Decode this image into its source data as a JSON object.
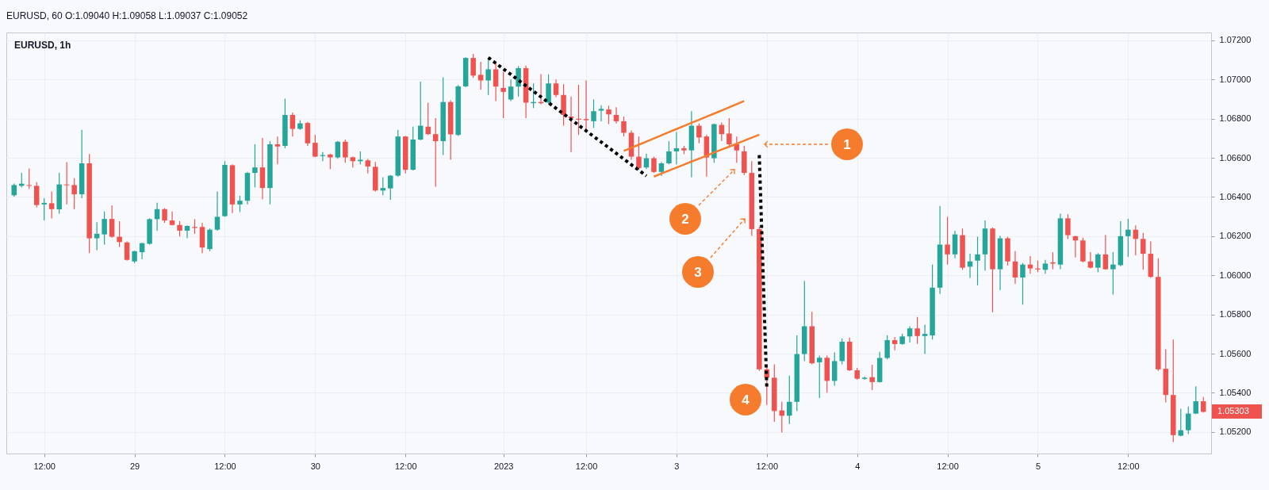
{
  "chart_data": {
    "type": "candlestick",
    "title": "EURUSD, 60 O:1.09040 H:1.09058 L:1.09037 C:1.09052",
    "subtitle": "EURUSD, 1h",
    "categories": [
      null,
      null,
      null,
      null,
      "12:00",
      null,
      null,
      null,
      null,
      null,
      null,
      null,
      null,
      null,
      null,
      null,
      "29",
      null,
      null,
      null,
      null,
      null,
      null,
      null,
      null,
      null,
      null,
      null,
      "12:00",
      null,
      null,
      null,
      null,
      null,
      null,
      null,
      null,
      null,
      null,
      null,
      "30",
      null,
      null,
      null,
      null,
      null,
      null,
      null,
      null,
      null,
      null,
      null,
      "12:00",
      null,
      null,
      null,
      null,
      null,
      null,
      null,
      null,
      null,
      null,
      null,
      null,
      "2023",
      null,
      null,
      null,
      null,
      null,
      null,
      null,
      null,
      null,
      null,
      "12:00",
      null,
      null,
      null,
      null,
      null,
      null,
      null,
      null,
      null,
      null,
      null,
      "3",
      null,
      null,
      null,
      null,
      null,
      null,
      null,
      null,
      null,
      null,
      null,
      "12:00",
      null,
      null,
      null,
      null,
      null,
      null,
      null,
      null,
      null,
      null,
      null,
      "4",
      null,
      null,
      null,
      null,
      null,
      null,
      null,
      null,
      null,
      null,
      null,
      "12:00",
      null,
      null,
      null,
      null,
      null,
      null,
      null,
      null,
      null,
      null,
      null,
      "5",
      null,
      null,
      null,
      null,
      null,
      null,
      null,
      null,
      null,
      null,
      null,
      "12:00",
      null,
      null,
      null,
      null,
      null,
      null,
      null,
      null,
      null,
      null
    ],
    "ohlc": [
      [
        1.06409,
        1.06469,
        1.06402,
        1.06461
      ],
      [
        1.06457,
        1.06523,
        1.06449,
        1.06468
      ],
      [
        1.06461,
        1.06546,
        1.06441,
        1.06457
      ],
      [
        1.06457,
        1.06476,
        1.06346,
        1.06359
      ],
      [
        1.06362,
        1.06394,
        1.0628,
        1.0637
      ],
      [
        1.06368,
        1.06428,
        1.06291,
        1.06338
      ],
      [
        1.06337,
        1.06523,
        1.06315,
        1.06464
      ],
      [
        1.06464,
        1.06578,
        1.06362,
        1.0646
      ],
      [
        1.06461,
        1.06496,
        1.06338,
        1.06414
      ],
      [
        1.06414,
        1.06743,
        1.06394,
        1.06572
      ],
      [
        1.06572,
        1.06619,
        1.06113,
        1.06189
      ],
      [
        1.06189,
        1.06271,
        1.06129,
        1.06212
      ],
      [
        1.06209,
        1.06326,
        1.06157,
        1.06288
      ],
      [
        1.06288,
        1.06357,
        1.06192,
        1.06197
      ],
      [
        1.06197,
        1.06276,
        1.06145,
        1.0617
      ],
      [
        1.06168,
        1.06173,
        1.06075,
        1.06079
      ],
      [
        1.06071,
        1.06126,
        1.06063,
        1.06123
      ],
      [
        1.06118,
        1.06167,
        1.06082,
        1.06164
      ],
      [
        1.06161,
        1.06291,
        1.06157,
        1.06287
      ],
      [
        1.06287,
        1.0637,
        1.06228,
        1.06338
      ],
      [
        1.06338,
        1.06343,
        1.06268,
        1.0628
      ],
      [
        1.0628,
        1.06326,
        1.06255,
        1.06257
      ],
      [
        1.06257,
        1.06277,
        1.06198,
        1.06228
      ],
      [
        1.06228,
        1.06255,
        1.06189,
        1.06252
      ],
      [
        1.06247,
        1.06287,
        1.06212,
        1.06242
      ],
      [
        1.06247,
        1.06268,
        1.06113,
        1.06142
      ],
      [
        1.06134,
        1.06239,
        1.06123,
        1.06233
      ],
      [
        1.06233,
        1.06428,
        1.06228,
        1.06299
      ],
      [
        1.06302,
        1.06583,
        1.06299,
        1.06564
      ],
      [
        1.06562,
        1.06567,
        1.06318,
        1.06362
      ],
      [
        1.06362,
        1.06406,
        1.06323,
        1.06381
      ],
      [
        1.06381,
        1.06528,
        1.06362,
        1.06523
      ],
      [
        1.06523,
        1.06669,
        1.06449,
        1.06551
      ],
      [
        1.06551,
        1.06701,
        1.06389,
        1.06446
      ],
      [
        1.06446,
        1.06685,
        1.06362,
        1.06669
      ],
      [
        1.06669,
        1.06709,
        1.06567,
        1.06658
      ],
      [
        1.06661,
        1.06902,
        1.06649,
        1.06819
      ],
      [
        1.06819,
        1.06831,
        1.06709,
        1.06748
      ],
      [
        1.06748,
        1.06792,
        1.06743,
        1.06776
      ],
      [
        1.06778,
        1.06783,
        1.06661,
        1.06674
      ],
      [
        1.06677,
        1.06717,
        1.06603,
        1.06606
      ],
      [
        1.06609,
        1.0663,
        1.06583,
        1.06614
      ],
      [
        1.06617,
        1.06622,
        1.06543,
        1.06602
      ],
      [
        1.06602,
        1.06685,
        1.06595,
        1.06682
      ],
      [
        1.06682,
        1.06693,
        1.06575,
        1.06602
      ],
      [
        1.06603,
        1.06606,
        1.06551,
        1.06583
      ],
      [
        1.06583,
        1.06633,
        1.06567,
        1.0659
      ],
      [
        1.06587,
        1.06594,
        1.0652,
        1.06556
      ],
      [
        1.06554,
        1.06579,
        1.06428,
        1.06433
      ],
      [
        1.06433,
        1.06501,
        1.06409,
        1.06446
      ],
      [
        1.06444,
        1.06512,
        1.06386,
        1.06509
      ],
      [
        1.06509,
        1.06743,
        1.06504,
        1.06709
      ],
      [
        1.06709,
        1.06712,
        1.0652,
        1.06539
      ],
      [
        1.0654,
        1.06759,
        1.06535,
        1.06693
      ],
      [
        1.06693,
        1.06989,
        1.0669,
        1.06764
      ],
      [
        1.06759,
        1.06882,
        1.06717,
        1.06721
      ],
      [
        1.06721,
        1.06803,
        1.06452,
        1.06685
      ],
      [
        1.06685,
        1.07011,
        1.06614,
        1.06885
      ],
      [
        1.06885,
        1.06894,
        1.0659,
        1.0672
      ],
      [
        1.06717,
        1.06972,
        1.06712,
        1.06965
      ],
      [
        1.06965,
        1.07113,
        1.06961,
        1.0711
      ],
      [
        1.0711,
        1.07131,
        1.07008,
        1.0702
      ],
      [
        1.07024,
        1.0709,
        1.06948,
        1.06995
      ],
      [
        1.06995,
        1.0711,
        1.06921,
        1.07052
      ],
      [
        1.07052,
        1.07087,
        1.0689,
        1.06964
      ],
      [
        1.06957,
        1.07039,
        1.06803,
        1.06937
      ],
      [
        1.06898,
        1.07,
        1.0689,
        1.06964
      ],
      [
        1.06964,
        1.07068,
        1.06913,
        1.07058
      ],
      [
        1.07058,
        1.07071,
        1.06803,
        1.06882
      ],
      [
        1.06879,
        1.0698,
        1.06854,
        1.06885
      ],
      [
        1.06885,
        1.07027,
        1.06874,
        1.06879
      ],
      [
        1.06882,
        1.07027,
        1.06874,
        1.0698
      ],
      [
        1.0698,
        1.07,
        1.0691,
        1.06921
      ],
      [
        1.06921,
        1.06976,
        1.06764,
        1.06819
      ],
      [
        1.06811,
        1.06913,
        1.0663,
        1.06803
      ],
      [
        1.068,
        1.06973,
        1.06717,
        1.06795
      ],
      [
        1.06798,
        1.06995,
        1.0674,
        1.06792
      ],
      [
        1.06787,
        1.06898,
        1.06753,
        1.06838
      ],
      [
        1.06841,
        1.06869,
        1.06787,
        1.0685
      ],
      [
        1.06847,
        1.06866,
        1.06772,
        1.06822
      ],
      [
        1.06819,
        1.06858,
        1.06775,
        1.06787
      ],
      [
        1.06787,
        1.06811,
        1.06709,
        1.06728
      ],
      [
        1.06728,
        1.0674,
        1.0659,
        1.06606
      ],
      [
        1.06606,
        1.06709,
        1.06539,
        1.06548
      ],
      [
        1.06551,
        1.06622,
        1.06543,
        1.06598
      ],
      [
        1.06598,
        1.06606,
        1.06523,
        1.06528
      ],
      [
        1.06528,
        1.06579,
        1.06507,
        1.06572
      ],
      [
        1.06572,
        1.06685,
        1.06567,
        1.06633
      ],
      [
        1.06633,
        1.06732,
        1.06567,
        1.06649
      ],
      [
        1.06649,
        1.06661,
        1.06619,
        1.06638
      ],
      [
        1.06638,
        1.06838,
        1.06501,
        1.06764
      ],
      [
        1.06764,
        1.06775,
        1.06674,
        1.06704
      ],
      [
        1.06709,
        1.06717,
        1.06504,
        1.06602
      ],
      [
        1.06598,
        1.06775,
        1.06575,
        1.06772
      ],
      [
        1.06768,
        1.0678,
        1.06685,
        1.06721
      ],
      [
        1.06724,
        1.06803,
        1.06661,
        1.06669
      ],
      [
        1.06669,
        1.06709,
        1.06575,
        1.06638
      ],
      [
        1.06633,
        1.06661,
        1.06512,
        1.06523
      ],
      [
        1.06523,
        1.06583,
        1.06201,
        1.06236
      ],
      [
        1.06236,
        1.06249,
        1.05512,
        1.0552
      ],
      [
        1.0552,
        1.05535,
        1.05338,
        1.05477
      ],
      [
        1.05477,
        1.05546,
        1.05252,
        1.05307
      ],
      [
        1.0531,
        1.05354,
        1.05197,
        1.05283
      ],
      [
        1.05283,
        1.05488,
        1.05241,
        1.05354
      ],
      [
        1.05354,
        1.05693,
        1.05307,
        1.05598
      ],
      [
        1.05598,
        1.05972,
        1.05562,
        1.0574
      ],
      [
        1.0574,
        1.05814,
        1.05546,
        1.05551
      ],
      [
        1.05556,
        1.0559,
        1.05373,
        1.05579
      ],
      [
        1.05579,
        1.0559,
        1.05401,
        1.05461
      ],
      [
        1.05461,
        1.05606,
        1.05436,
        1.05562
      ],
      [
        1.05562,
        1.05677,
        1.05546,
        1.05661
      ],
      [
        1.05661,
        1.05682,
        1.05512,
        1.05515
      ],
      [
        1.05515,
        1.05527,
        1.05468,
        1.05472
      ],
      [
        1.05471,
        1.05483,
        1.05468,
        1.05477
      ],
      [
        1.0548,
        1.05543,
        1.05414,
        1.05455
      ],
      [
        1.05455,
        1.05609,
        1.05452,
        1.05578
      ],
      [
        1.05578,
        1.05693,
        1.05571,
        1.05669
      ],
      [
        1.05669,
        1.05685,
        1.05617,
        1.05649
      ],
      [
        1.05649,
        1.05701,
        1.05646,
        1.05688
      ],
      [
        1.05688,
        1.0574,
        1.05657,
        1.05729
      ],
      [
        1.05729,
        1.05787,
        1.0565,
        1.0569
      ],
      [
        1.0569,
        1.05748,
        1.05598,
        1.05701
      ],
      [
        1.05693,
        1.06055,
        1.05672,
        1.05937
      ],
      [
        1.05937,
        1.06354,
        1.05905,
        1.06157
      ],
      [
        1.06157,
        1.06299,
        1.06055,
        1.06107
      ],
      [
        1.06107,
        1.06228,
        1.06087,
        1.06209
      ],
      [
        1.06205,
        1.06239,
        1.06028,
        1.06039
      ],
      [
        1.06044,
        1.0611,
        1.05987,
        1.06071
      ],
      [
        1.06075,
        1.06197,
        1.05949,
        1.06107
      ],
      [
        1.06107,
        1.0628,
        1.06024,
        1.06239
      ],
      [
        1.06239,
        1.06244,
        1.05811,
        1.06031
      ],
      [
        1.06031,
        1.06201,
        1.05924,
        1.06189
      ],
      [
        1.06189,
        1.06197,
        1.0605,
        1.06071
      ],
      [
        1.06071,
        1.06123,
        1.05956,
        1.05989
      ],
      [
        1.05989,
        1.06063,
        1.0585,
        1.06055
      ],
      [
        1.06055,
        1.06098,
        1.06008,
        1.06035
      ],
      [
        1.06035,
        1.06075,
        1.06016,
        1.0603
      ],
      [
        1.06028,
        1.06079,
        1.06008,
        1.0606
      ],
      [
        1.06066,
        1.06118,
        1.06031,
        1.0606
      ],
      [
        1.06055,
        1.06315,
        1.06031,
        1.06291
      ],
      [
        1.06291,
        1.06312,
        1.06186,
        1.06205
      ],
      [
        1.062,
        1.06201,
        1.06091,
        1.06178
      ],
      [
        1.06178,
        1.06192,
        1.06066,
        1.06071
      ],
      [
        1.06071,
        1.06118,
        1.06035,
        1.06039
      ],
      [
        1.06039,
        1.06113,
        1.06016,
        1.06107
      ],
      [
        1.06107,
        1.06205,
        1.06028,
        1.06031
      ],
      [
        1.06031,
        1.06118,
        1.05902,
        1.06055
      ],
      [
        1.06052,
        1.06276,
        1.06047,
        1.062
      ],
      [
        1.062,
        1.06288,
        1.06094,
        1.06233
      ],
      [
        1.06233,
        1.06255,
        1.06102,
        1.06186
      ],
      [
        1.06186,
        1.06217,
        1.06028,
        1.0611
      ],
      [
        1.0611,
        1.06173,
        1.05987,
        1.05992
      ],
      [
        1.05992,
        1.06087,
        1.05512,
        1.0552
      ],
      [
        1.05523,
        1.05622,
        1.05351,
        1.05389
      ],
      [
        1.05389,
        1.05672,
        1.05149,
        1.05184
      ],
      [
        1.05181,
        1.05319,
        1.05178,
        1.05209
      ],
      [
        1.05209,
        1.0533,
        1.05189,
        1.05294
      ],
      [
        1.05294,
        1.05433,
        1.05291,
        1.05357
      ],
      [
        1.05357,
        1.05378,
        1.05299,
        1.05303
      ]
    ],
    "colors": [
      "#26a69a",
      "#26a69a",
      "#ef5350",
      "#ef5350",
      "#26a69a",
      "#ef5350",
      "#26a69a",
      "#ef5350",
      "#ef5350",
      "#26a69a",
      "#ef5350",
      "#26a69a",
      "#26a69a",
      "#ef5350",
      "#ef5350",
      "#ef5350",
      "#26a69a",
      "#26a69a",
      "#26a69a",
      "#26a69a",
      "#ef5350",
      "#ef5350",
      "#ef5350",
      "#26a69a",
      "#ef5350",
      "#ef5350",
      "#26a69a",
      "#26a69a",
      "#26a69a",
      "#ef5350",
      "#26a69a",
      "#26a69a",
      "#26a69a",
      "#ef5350",
      "#26a69a",
      "#ef5350",
      "#26a69a",
      "#ef5350",
      "#26a69a",
      "#ef5350",
      "#ef5350",
      "#26a69a",
      "#ef5350",
      "#26a69a",
      "#ef5350",
      "#ef5350",
      "#26a69a",
      "#ef5350",
      "#ef5350",
      "#26a69a",
      "#26a69a",
      "#26a69a",
      "#ef5350",
      "#26a69a",
      "#26a69a",
      "#ef5350",
      "#ef5350",
      "#26a69a",
      "#ef5350",
      "#26a69a",
      "#26a69a",
      "#ef5350",
      "#ef5350",
      "#26a69a",
      "#ef5350",
      "#ef5350",
      "#26a69a",
      "#26a69a",
      "#ef5350",
      "#26a69a",
      "#ef5350",
      "#26a69a",
      "#ef5350",
      "#ef5350",
      "#ef5350",
      "#ef5350",
      "#ef5350",
      "#26a69a",
      "#26a69a",
      "#ef5350",
      "#ef5350",
      "#ef5350",
      "#ef5350",
      "#ef5350",
      "#26a69a",
      "#ef5350",
      "#26a69a",
      "#26a69a",
      "#26a69a",
      "#ef5350",
      "#26a69a",
      "#ef5350",
      "#ef5350",
      "#26a69a",
      "#ef5350",
      "#ef5350",
      "#ef5350",
      "#ef5350",
      "#ef5350",
      "#ef5350",
      "#ef5350",
      "#ef5350",
      "#ef5350",
      "#26a69a",
      "#26a69a",
      "#26a69a",
      "#ef5350",
      "#26a69a",
      "#ef5350",
      "#26a69a",
      "#26a69a",
      "#ef5350",
      "#ef5350",
      "#26a69a",
      "#ef5350",
      "#26a69a",
      "#26a69a",
      "#ef5350",
      "#26a69a",
      "#26a69a",
      "#ef5350",
      "#26a69a",
      "#26a69a",
      "#26a69a",
      "#ef5350",
      "#26a69a",
      "#ef5350",
      "#26a69a",
      "#26a69a",
      "#26a69a",
      "#ef5350",
      "#26a69a",
      "#ef5350",
      "#ef5350",
      "#26a69a",
      "#ef5350",
      "#ef5350",
      "#26a69a",
      "#ef5350",
      "#26a69a",
      "#ef5350",
      "#ef5350",
      "#ef5350",
      "#ef5350",
      "#26a69a",
      "#ef5350",
      "#26a69a",
      "#26a69a",
      "#26a69a",
      "#ef5350",
      "#ef5350",
      "#ef5350",
      "#ef5350",
      "#ef5350",
      "#ef5350",
      "#26a69a",
      "#26a69a",
      "#26a69a",
      "#ef5350"
    ],
    "series": [
      {
        "type": "line",
        "values": [
          null,
          null,
          null,
          null,
          null,
          null,
          null,
          null,
          null,
          null,
          null,
          null,
          null,
          null,
          null,
          null,
          null,
          null,
          null,
          null,
          null,
          null,
          null,
          null,
          null,
          null,
          null,
          null,
          null,
          null,
          null,
          null,
          null,
          null,
          null,
          null,
          null,
          null,
          null,
          null,
          null,
          null,
          null,
          null,
          null,
          null,
          null,
          null,
          null,
          null,
          null,
          null,
          null,
          null,
          null,
          null,
          null,
          null,
          null,
          null,
          null,
          null,
          null,
          1.07112,
          1.07083,
          1.07054,
          1.07026,
          1.06997,
          1.06968,
          1.0694,
          1.06911,
          1.06882,
          1.06853,
          1.06824,
          1.06796,
          1.06767,
          1.06738,
          1.06709,
          1.06681,
          1.06652,
          1.06623,
          1.06594,
          1.06565,
          1.06537,
          1.06508,
          null,
          null,
          null,
          null,
          null,
          null,
          null,
          null,
          null,
          null,
          null,
          null,
          null,
          null,
          null,
          null,
          null,
          null,
          null,
          null,
          null,
          null,
          null,
          null,
          null,
          null,
          null,
          null,
          null,
          null,
          null,
          null,
          null,
          null,
          null,
          null,
          null,
          null,
          null,
          null,
          null,
          null,
          null,
          null,
          null,
          null,
          null,
          null,
          null,
          null,
          null,
          null,
          null,
          null,
          null,
          null,
          null,
          null,
          null,
          null,
          null,
          null,
          null,
          null,
          null,
          null,
          null,
          null,
          null,
          null,
          null,
          null,
          null,
          null
        ],
        "color": "#000000",
        "line_style": "dotted"
      },
      {
        "type": "line",
        "values": [
          null,
          null,
          null,
          null,
          null,
          null,
          null,
          null,
          null,
          null,
          null,
          null,
          null,
          null,
          null,
          null,
          null,
          null,
          null,
          null,
          null,
          null,
          null,
          null,
          null,
          null,
          null,
          null,
          null,
          null,
          null,
          null,
          null,
          null,
          null,
          null,
          null,
          null,
          null,
          null,
          null,
          null,
          null,
          null,
          null,
          null,
          null,
          null,
          null,
          null,
          null,
          null,
          null,
          null,
          null,
          null,
          null,
          null,
          null,
          null,
          null,
          null,
          null,
          null,
          null,
          null,
          null,
          null,
          null,
          null,
          null,
          null,
          null,
          null,
          null,
          null,
          null,
          null,
          null,
          null,
          null,
          null,
          null,
          null,
          null,
          null,
          null,
          null,
          null,
          null,
          null,
          null,
          null,
          null,
          null,
          null,
          null,
          null,
          null,
          1.06614,
          1.05425,
          null,
          null,
          null,
          null,
          null,
          null,
          null,
          null,
          null,
          null,
          null,
          null,
          null,
          null,
          null,
          null,
          null,
          null,
          null,
          null,
          null,
          null,
          null,
          null,
          null,
          null,
          null,
          null,
          null,
          null,
          null,
          null,
          null,
          null,
          null,
          null,
          null,
          null,
          null,
          null,
          null,
          null,
          null,
          null,
          null,
          null,
          null,
          null,
          null,
          null,
          null,
          null,
          null,
          null,
          null,
          null,
          null,
          null
        ],
        "color": "#000000",
        "line_style": "dotted"
      },
      {
        "type": "line",
        "values": [
          null,
          null,
          null,
          null,
          null,
          null,
          null,
          null,
          null,
          null,
          null,
          null,
          null,
          null,
          null,
          null,
          null,
          null,
          null,
          null,
          null,
          null,
          null,
          null,
          null,
          null,
          null,
          null,
          null,
          null,
          null,
          null,
          null,
          null,
          null,
          null,
          null,
          null,
          null,
          null,
          null,
          null,
          null,
          null,
          null,
          null,
          null,
          null,
          null,
          null,
          null,
          null,
          null,
          null,
          null,
          null,
          null,
          null,
          null,
          null,
          null,
          null,
          null,
          null,
          null,
          null,
          null,
          null,
          null,
          null,
          null,
          null,
          null,
          null,
          null,
          null,
          null,
          null,
          null,
          null,
          null,
          1.06635,
          1.06651,
          1.06667,
          1.06683,
          1.06699,
          1.06715,
          1.06731,
          1.06747,
          1.06763,
          1.06779,
          1.06794,
          1.0681,
          1.06826,
          1.06842,
          1.06858,
          1.06874,
          1.0689,
          null,
          null,
          null,
          null,
          null,
          null,
          null,
          null,
          null,
          null,
          null,
          null,
          null,
          null,
          null,
          null,
          null,
          null,
          null,
          null,
          null,
          null,
          null,
          null,
          null,
          null,
          null,
          null,
          null,
          null,
          null,
          null,
          null,
          null,
          null,
          null,
          null,
          null,
          null,
          null,
          null,
          null,
          null,
          null,
          null,
          null,
          null,
          null,
          null,
          null,
          null,
          null,
          null,
          null,
          null,
          null,
          null,
          null,
          null,
          null,
          null
        ],
        "color": "#f57c2c",
        "line_style": "solid"
      },
      {
        "type": "line",
        "values": [
          null,
          null,
          null,
          null,
          null,
          null,
          null,
          null,
          null,
          null,
          null,
          null,
          null,
          null,
          null,
          null,
          null,
          null,
          null,
          null,
          null,
          null,
          null,
          null,
          null,
          null,
          null,
          null,
          null,
          null,
          null,
          null,
          null,
          null,
          null,
          null,
          null,
          null,
          null,
          null,
          null,
          null,
          null,
          null,
          null,
          null,
          null,
          null,
          null,
          null,
          null,
          null,
          null,
          null,
          null,
          null,
          null,
          null,
          null,
          null,
          null,
          null,
          null,
          null,
          null,
          null,
          null,
          null,
          null,
          null,
          null,
          null,
          null,
          null,
          null,
          null,
          null,
          null,
          null,
          null,
          null,
          null,
          null,
          null,
          null,
          1.06504,
          1.0652,
          1.06535,
          1.0655,
          1.06565,
          1.06581,
          1.06596,
          1.06611,
          1.06627,
          1.06642,
          1.06657,
          1.06672,
          1.06688,
          1.06703,
          1.06718,
          null,
          null,
          null,
          null,
          null,
          null,
          null,
          null,
          null,
          null,
          null,
          null,
          null,
          null,
          null,
          null,
          null,
          null,
          null,
          null,
          null,
          null,
          null,
          null,
          null,
          null,
          null,
          null,
          null,
          null,
          null,
          null,
          null,
          null,
          null,
          null,
          null,
          null,
          null,
          null,
          null,
          null,
          null,
          null,
          null,
          null,
          null,
          null,
          null,
          null,
          null,
          null,
          null,
          null,
          null,
          null,
          null,
          null,
          null
        ],
        "color": "#f57c2c",
        "line_style": "solid"
      }
    ],
    "annotations": [
      "1",
      "2",
      "3",
      "4",
      "1.05303"
    ],
    "ylim": [
      1.0509,
      1.0724
    ],
    "yticks": [
      {
        "value": 1.052,
        "label": "1.05200"
      },
      {
        "value": 1.054,
        "label": "1.05400"
      },
      {
        "value": 1.056,
        "label": "1.05600"
      },
      {
        "value": 1.058,
        "label": "1.05800"
      },
      {
        "value": 1.06,
        "label": "1.06000"
      },
      {
        "value": 1.062,
        "label": "1.06200"
      },
      {
        "value": 1.064,
        "label": "1.06400"
      },
      {
        "value": 1.066,
        "label": "1.06600"
      },
      {
        "value": 1.068,
        "label": "1.06800"
      },
      {
        "value": 1.07,
        "label": "1.07000"
      },
      {
        "value": 1.072,
        "label": "1.07200"
      }
    ],
    "grid": true
  }
}
